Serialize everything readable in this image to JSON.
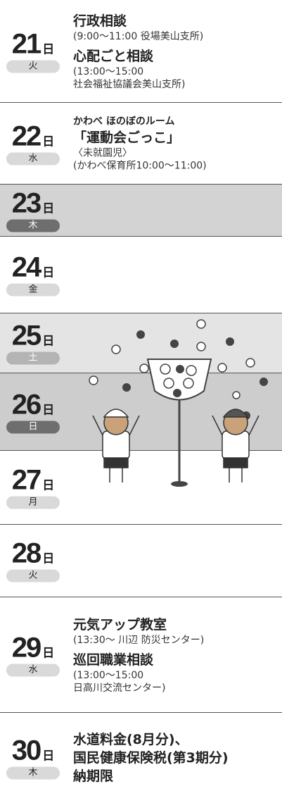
{
  "days": [
    {
      "day": "21",
      "unit": "日",
      "weekday": "火",
      "events": [
        {
          "title": [
            "行政相談"
          ],
          "notes": [
            "(9:00〜11:00 役場美山支所)"
          ]
        },
        {
          "title": [
            "心配ごと相談"
          ],
          "notes": [
            "(13:00〜15:00",
            "社会福祉協議会美山支所)"
          ]
        }
      ]
    },
    {
      "day": "22",
      "unit": "日",
      "weekday": "水",
      "events": [
        {
          "lead": "かわべ ほのぼのルーム",
          "title": [
            "「運動会ごっこ」"
          ],
          "notes": [
            "〈未就園児〉",
            "(かわべ保育所10:00〜11:00)"
          ]
        }
      ]
    },
    {
      "day": "23",
      "unit": "日",
      "weekday": "木",
      "events": []
    },
    {
      "day": "24",
      "unit": "日",
      "weekday": "金",
      "events": []
    },
    {
      "day": "25",
      "unit": "日",
      "weekday": "土",
      "events": []
    },
    {
      "day": "26",
      "unit": "日",
      "weekday": "日",
      "events": []
    },
    {
      "day": "27",
      "unit": "日",
      "weekday": "月",
      "events": []
    },
    {
      "day": "28",
      "unit": "日",
      "weekday": "火",
      "events": []
    },
    {
      "day": "29",
      "unit": "日",
      "weekday": "水",
      "events": [
        {
          "title": [
            "元気アップ教室"
          ],
          "notes": [
            "(13:30〜 川辺 防災センター)"
          ]
        },
        {
          "title": [
            "巡回職業相談"
          ],
          "notes": [
            "(13:00〜15:00",
            "日高川交流センター)"
          ]
        }
      ]
    },
    {
      "day": "30",
      "unit": "日",
      "weekday": "木",
      "events": [
        {
          "title": [
            "水道料金(8月分)、",
            "国民健康保険税(第3期分)",
            "納期限"
          ],
          "notes": []
        }
      ]
    }
  ]
}
